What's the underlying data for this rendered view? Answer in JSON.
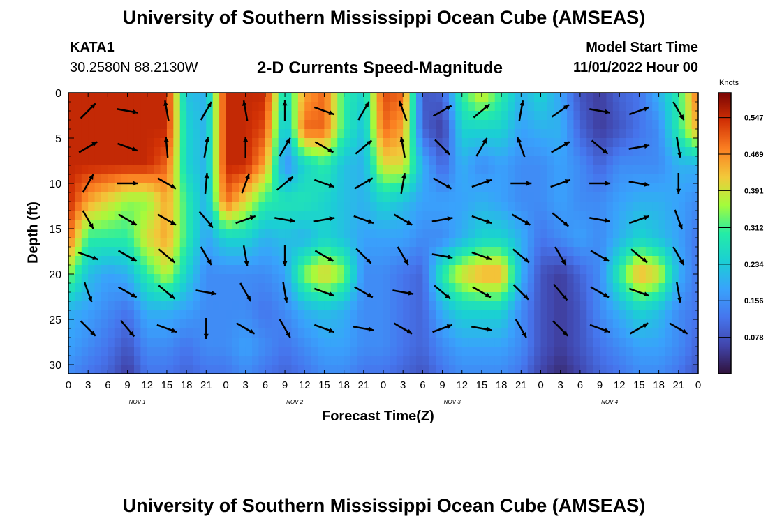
{
  "header": {
    "title": "University of Southern Mississippi Ocean Cube (AMSEAS)",
    "station_id": "KATA1",
    "station_coords": "30.2580N  88.2130W",
    "subtitle": "2-D Currents Speed-Magnitude",
    "start_label": "Model Start Time",
    "start_value": "11/01/2022 Hour 00"
  },
  "footer": {
    "title": "University of Southern Mississippi Ocean Cube (AMSEAS)"
  },
  "chart_data": {
    "type": "heatmap",
    "title": "2-D Currents Speed-Magnitude",
    "xlabel": "Forecast Time(Z)",
    "ylabel": "Depth (ft)",
    "x_ticks": [
      "0",
      "3",
      "6",
      "9",
      "12",
      "15",
      "18",
      "21",
      "0",
      "3",
      "6",
      "9",
      "12",
      "15",
      "18",
      "21",
      "0",
      "3",
      "6",
      "9",
      "12",
      "15",
      "18",
      "21",
      "0",
      "3",
      "6",
      "9",
      "12",
      "15",
      "18",
      "21",
      "0"
    ],
    "day_labels": [
      "NOV 1",
      "NOV 2",
      "NOV 3",
      "NOV 4"
    ],
    "xlim_hours": [
      0,
      96
    ],
    "y_ticks": [
      "0",
      "5",
      "10",
      "15",
      "20",
      "25",
      "30"
    ],
    "ylim_ft": [
      0,
      31
    ],
    "y_inverted": true,
    "colorbar": {
      "unit": "Knots",
      "ticks": [
        "0.547",
        "0.469",
        "0.391",
        "0.312",
        "0.234",
        "0.156",
        "0.078"
      ],
      "range": [
        0,
        0.6
      ]
    },
    "speed_field": {
      "description_hours": [
        0,
        3,
        6,
        9,
        12,
        15,
        18,
        21,
        24,
        27,
        30,
        33,
        36,
        39,
        42,
        45,
        48,
        51,
        54,
        57,
        60,
        63,
        66,
        69,
        72,
        75,
        78,
        81,
        84,
        87,
        90,
        93,
        96
      ],
      "depths_ft": [
        0,
        4,
        8,
        12,
        16,
        20,
        24,
        28,
        31
      ],
      "values": [
        [
          0.55,
          0.55,
          0.55,
          0.55,
          0.55,
          0.55,
          0.22,
          0.2,
          0.55,
          0.55,
          0.55,
          0.25,
          0.45,
          0.5,
          0.3,
          0.25,
          0.52,
          0.5,
          0.08,
          0.1,
          0.3,
          0.4,
          0.3,
          0.2,
          0.25,
          0.18,
          0.08,
          0.05,
          0.1,
          0.12,
          0.2,
          0.3,
          0.5
        ],
        [
          0.55,
          0.55,
          0.55,
          0.55,
          0.55,
          0.55,
          0.25,
          0.2,
          0.55,
          0.55,
          0.52,
          0.2,
          0.5,
          0.5,
          0.3,
          0.22,
          0.5,
          0.45,
          0.1,
          0.05,
          0.25,
          0.25,
          0.25,
          0.18,
          0.2,
          0.2,
          0.1,
          0.05,
          0.08,
          0.12,
          0.15,
          0.3,
          0.45
        ],
        [
          0.55,
          0.55,
          0.55,
          0.55,
          0.55,
          0.5,
          0.25,
          0.2,
          0.55,
          0.55,
          0.45,
          0.15,
          0.25,
          0.3,
          0.22,
          0.2,
          0.4,
          0.4,
          0.2,
          0.1,
          0.2,
          0.15,
          0.18,
          0.15,
          0.15,
          0.18,
          0.15,
          0.1,
          0.15,
          0.15,
          0.15,
          0.2,
          0.2
        ],
        [
          0.55,
          0.45,
          0.4,
          0.35,
          0.35,
          0.45,
          0.3,
          0.2,
          0.5,
          0.4,
          0.3,
          0.28,
          0.28,
          0.25,
          0.22,
          0.2,
          0.25,
          0.22,
          0.18,
          0.18,
          0.18,
          0.2,
          0.18,
          0.15,
          0.15,
          0.18,
          0.15,
          0.15,
          0.18,
          0.2,
          0.2,
          0.18,
          0.15
        ],
        [
          0.5,
          0.3,
          0.3,
          0.3,
          0.4,
          0.45,
          0.3,
          0.18,
          0.25,
          0.25,
          0.2,
          0.22,
          0.2,
          0.25,
          0.22,
          0.18,
          0.18,
          0.18,
          0.15,
          0.15,
          0.2,
          0.25,
          0.25,
          0.2,
          0.12,
          0.15,
          0.18,
          0.15,
          0.2,
          0.25,
          0.22,
          0.18,
          0.12
        ],
        [
          0.35,
          0.22,
          0.18,
          0.2,
          0.3,
          0.38,
          0.25,
          0.15,
          0.15,
          0.15,
          0.15,
          0.18,
          0.35,
          0.42,
          0.35,
          0.15,
          0.15,
          0.12,
          0.1,
          0.3,
          0.4,
          0.45,
          0.45,
          0.2,
          0.08,
          0.05,
          0.1,
          0.15,
          0.3,
          0.45,
          0.4,
          0.2,
          0.12
        ],
        [
          0.2,
          0.18,
          0.15,
          0.12,
          0.2,
          0.2,
          0.18,
          0.15,
          0.15,
          0.15,
          0.12,
          0.15,
          0.2,
          0.22,
          0.2,
          0.15,
          0.15,
          0.12,
          0.1,
          0.2,
          0.25,
          0.25,
          0.25,
          0.15,
          0.08,
          0.05,
          0.08,
          0.15,
          0.2,
          0.25,
          0.22,
          0.15,
          0.12
        ],
        [
          0.18,
          0.15,
          0.12,
          0.08,
          0.15,
          0.15,
          0.12,
          0.15,
          0.15,
          0.18,
          0.15,
          0.12,
          0.15,
          0.18,
          0.18,
          0.15,
          0.15,
          0.12,
          0.1,
          0.15,
          0.18,
          0.18,
          0.18,
          0.15,
          0.08,
          0.05,
          0.08,
          0.12,
          0.15,
          0.18,
          0.18,
          0.15,
          0.1
        ],
        [
          0.15,
          0.12,
          0.1,
          0.05,
          0.12,
          0.12,
          0.1,
          0.12,
          0.12,
          0.15,
          0.12,
          0.1,
          0.12,
          0.15,
          0.15,
          0.12,
          0.12,
          0.1,
          0.08,
          0.12,
          0.15,
          0.15,
          0.15,
          0.12,
          0.06,
          0.03,
          0.06,
          0.1,
          0.12,
          0.15,
          0.15,
          0.12,
          0.08
        ]
      ]
    },
    "vectors": {
      "hours": [
        3,
        9,
        15,
        21,
        27,
        33,
        39,
        45,
        51,
        57,
        63,
        69,
        75,
        81,
        87,
        93
      ],
      "depths_ft": [
        2,
        6,
        10,
        14,
        18,
        22,
        26
      ],
      "angles_deg": [
        [
          45,
          -10,
          100,
          60,
          100,
          90,
          -20,
          60,
          110,
          30,
          40,
          80,
          35,
          -10,
          20,
          -60
        ],
        [
          30,
          -20,
          95,
          80,
          90,
          60,
          -30,
          40,
          100,
          -45,
          60,
          110,
          30,
          -40,
          10,
          -80
        ],
        [
          60,
          0,
          -30,
          85,
          70,
          40,
          -20,
          30,
          80,
          -30,
          20,
          0,
          20,
          0,
          -10,
          -90
        ],
        [
          -60,
          -30,
          -30,
          -50,
          20,
          -10,
          10,
          -20,
          -30,
          10,
          -20,
          -30,
          -40,
          -10,
          20,
          -70
        ],
        [
          -20,
          -30,
          -40,
          -60,
          -80,
          -90,
          -30,
          -45,
          -60,
          -10,
          -20,
          -40,
          -60,
          -30,
          -40,
          -60
        ],
        [
          -70,
          -30,
          -40,
          -10,
          -60,
          -80,
          -20,
          -30,
          -10,
          -40,
          -30,
          -45,
          -50,
          -30,
          -20,
          -80
        ],
        [
          -45,
          -50,
          -20,
          -90,
          -30,
          -60,
          -20,
          -10,
          -30,
          20,
          -10,
          -60,
          -45,
          -20,
          30,
          -30
        ]
      ]
    }
  }
}
